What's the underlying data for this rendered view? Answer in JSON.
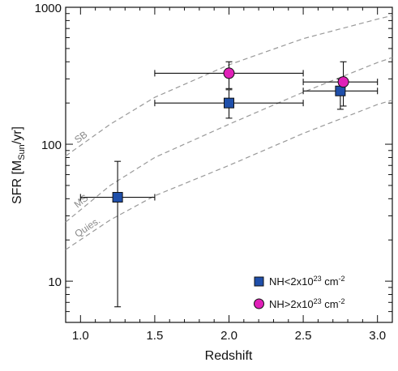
{
  "chart_data": {
    "type": "scatter",
    "xlabel": "Redshift",
    "ylabel": {
      "main": "SFR [M",
      "sub": "Sun",
      "tail": "/yr]"
    },
    "xlim": [
      0.9,
      3.1
    ],
    "ylim": [
      5,
      1000
    ],
    "yscale": "log",
    "x_ticks": [
      {
        "value": 1.0,
        "label": "1.0"
      },
      {
        "value": 1.5,
        "label": "1.5"
      },
      {
        "value": 2.0,
        "label": "2.0"
      },
      {
        "value": 2.5,
        "label": "2.5"
      },
      {
        "value": 3.0,
        "label": "3.0"
      }
    ],
    "y_ticks": [
      {
        "value": 10,
        "label": "10"
      },
      {
        "value": 100,
        "label": "100"
      },
      {
        "value": 1000,
        "label": "1000"
      }
    ],
    "series": [
      {
        "name": "NH<2x10^23 cm^-2",
        "marker": "square",
        "color": "#1f4faa",
        "points": [
          {
            "x": 1.25,
            "y": 41,
            "xlo": 1.0,
            "xhi": 1.5,
            "ylo": 6.5,
            "yhi": 75
          },
          {
            "x": 2.0,
            "y": 200,
            "xlo": 1.5,
            "xhi": 2.5,
            "ylo": 155,
            "yhi": 250
          },
          {
            "x": 2.75,
            "y": 245,
            "xlo": 2.5,
            "xhi": 3.0,
            "ylo": 180,
            "yhi": 300
          }
        ]
      },
      {
        "name": "NH>2x10^23 cm^-2",
        "marker": "circle",
        "color": "#e020b8",
        "points": [
          {
            "x": 2.0,
            "y": 330,
            "xlo": 1.5,
            "xhi": 2.5,
            "ylo": 255,
            "yhi": 400
          },
          {
            "x": 2.77,
            "y": 285,
            "xlo": 2.5,
            "xhi": 3.0,
            "ylo": 190,
            "yhi": 400
          }
        ]
      }
    ],
    "reference_curves": [
      {
        "label": "SB",
        "color": "#999999",
        "points": [
          [
            0.9,
            82
          ],
          [
            1.2,
            140
          ],
          [
            1.5,
            220
          ],
          [
            2.0,
            380
          ],
          [
            2.5,
            590
          ],
          [
            3.0,
            820
          ],
          [
            3.1,
            870
          ]
        ]
      },
      {
        "label": "MS",
        "color": "#999999",
        "points": [
          [
            0.9,
            27
          ],
          [
            1.2,
            50
          ],
          [
            1.5,
            80
          ],
          [
            2.0,
            140
          ],
          [
            2.5,
            240
          ],
          [
            3.0,
            395
          ],
          [
            3.1,
            430
          ]
        ]
      },
      {
        "label": "Quies.",
        "color": "#999999",
        "points": [
          [
            0.9,
            17
          ],
          [
            1.2,
            28
          ],
          [
            1.5,
            42
          ],
          [
            2.0,
            70
          ],
          [
            2.5,
            120
          ],
          [
            3.0,
            195
          ],
          [
            3.1,
            210
          ]
        ]
      }
    ],
    "legend": {
      "position": "bottom-right",
      "entries": [
        {
          "marker": "square",
          "color": "#1f4faa",
          "pre": "NH<2x10",
          "sup1": "23",
          "mid": " cm",
          "sup2": "-2"
        },
        {
          "marker": "circle",
          "color": "#e020b8",
          "pre": "NH>2x10",
          "sup1": "23",
          "mid": " cm",
          "sup2": "-2"
        }
      ]
    }
  }
}
